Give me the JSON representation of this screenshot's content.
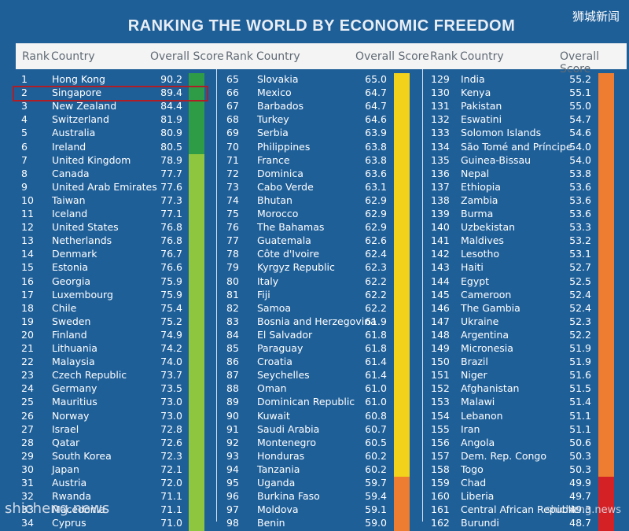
{
  "title": "RANKING THE WORLD BY ECONOMIC FREEDOM",
  "brand": "狮城新闻",
  "headers": {
    "rank": "Rank",
    "country": "Country",
    "score": "Overall Score"
  },
  "watermarks": {
    "left": "shicheng.news",
    "right": "shicheng.news"
  },
  "colors": {
    "background": "#1f5f98",
    "green": "#2e9b47",
    "light_green": "#8ec63f",
    "yellow": "#f2d21b",
    "orange": "#ee7d31",
    "red": "#d42126",
    "highlight": "#b11d25"
  },
  "columns": [
    {
      "rows": [
        [
          "1",
          "Hong Kong",
          "90.2"
        ],
        [
          "2",
          "Singapore",
          "89.4"
        ],
        [
          "3",
          "New Zealand",
          "84.4"
        ],
        [
          "4",
          "Switzerland",
          "81.9"
        ],
        [
          "5",
          "Australia",
          "80.9"
        ],
        [
          "6",
          "Ireland",
          "80.5"
        ],
        [
          "7",
          "United Kingdom",
          "78.9"
        ],
        [
          "8",
          "Canada",
          "77.7"
        ],
        [
          "9",
          "United Arab Emirates",
          "77.6"
        ],
        [
          "10",
          "Taiwan",
          "77.3"
        ],
        [
          "11",
          "Iceland",
          "77.1"
        ],
        [
          "12",
          "United States",
          "76.8"
        ],
        [
          "13",
          "Netherlands",
          "76.8"
        ],
        [
          "14",
          "Denmark",
          "76.7"
        ],
        [
          "15",
          "Estonia",
          "76.6"
        ],
        [
          "16",
          "Georgia",
          "75.9"
        ],
        [
          "17",
          "Luxembourg",
          "75.9"
        ],
        [
          "18",
          "Chile",
          "75.4"
        ],
        [
          "19",
          "Sweden",
          "75.2"
        ],
        [
          "20",
          "Finland",
          "74.9"
        ],
        [
          "21",
          "Lithuania",
          "74.2"
        ],
        [
          "22",
          "Malaysia",
          "74.0"
        ],
        [
          "23",
          "Czech Republic",
          "73.7"
        ],
        [
          "24",
          "Germany",
          "73.5"
        ],
        [
          "25",
          "Mauritius",
          "73.0"
        ],
        [
          "26",
          "Norway",
          "73.0"
        ],
        [
          "27",
          "Israel",
          "72.8"
        ],
        [
          "28",
          "Qatar",
          "72.6"
        ],
        [
          "29",
          "South Korea",
          "72.3"
        ],
        [
          "30",
          "Japan",
          "72.1"
        ],
        [
          "31",
          "Austria",
          "72.0"
        ],
        [
          "32",
          "Rwanda",
          "71.1"
        ],
        [
          "33",
          "Macedonia",
          "71.1"
        ],
        [
          "34",
          "Cyprus",
          "71.0"
        ]
      ]
    },
    {
      "rows": [
        [
          "65",
          "Slovakia",
          "65.0"
        ],
        [
          "66",
          "Mexico",
          "64.7"
        ],
        [
          "67",
          "Barbados",
          "64.7"
        ],
        [
          "68",
          "Turkey",
          "64.6"
        ],
        [
          "69",
          "Serbia",
          "63.9"
        ],
        [
          "70",
          "Philippines",
          "63.8"
        ],
        [
          "71",
          "France",
          "63.8"
        ],
        [
          "72",
          "Dominica",
          "63.6"
        ],
        [
          "73",
          "Cabo Verde",
          "63.1"
        ],
        [
          "74",
          "Bhutan",
          "62.9"
        ],
        [
          "75",
          "Morocco",
          "62.9"
        ],
        [
          "76",
          "The Bahamas",
          "62.9"
        ],
        [
          "77",
          "Guatemala",
          "62.6"
        ],
        [
          "78",
          "Côte d'Ivoire",
          "62.4"
        ],
        [
          "79",
          "Kyrgyz Republic",
          "62.3"
        ],
        [
          "80",
          "Italy",
          "62.2"
        ],
        [
          "81",
          "Fiji",
          "62.2"
        ],
        [
          "82",
          "Samoa",
          "62.2"
        ],
        [
          "83",
          "Bosnia and Herzegovina",
          "61.9"
        ],
        [
          "84",
          "El Salvador",
          "61.8"
        ],
        [
          "85",
          "Paraguay",
          "61.8"
        ],
        [
          "86",
          "Croatia",
          "61.4"
        ],
        [
          "87",
          "Seychelles",
          "61.4"
        ],
        [
          "88",
          "Oman",
          "61.0"
        ],
        [
          "89",
          "Dominican Republic",
          "61.0"
        ],
        [
          "90",
          "Kuwait",
          "60.8"
        ],
        [
          "91",
          "Saudi Arabia",
          "60.7"
        ],
        [
          "92",
          "Montenegro",
          "60.5"
        ],
        [
          "93",
          "Honduras",
          "60.2"
        ],
        [
          "94",
          "Tanzania",
          "60.2"
        ],
        [
          "95",
          "Uganda",
          "59.7"
        ],
        [
          "96",
          "Burkina Faso",
          "59.4"
        ],
        [
          "97",
          "Moldova",
          "59.1"
        ],
        [
          "98",
          "Benin",
          "59.0"
        ]
      ]
    },
    {
      "rows": [
        [
          "129",
          "India",
          "55.2"
        ],
        [
          "130",
          "Kenya",
          "55.1"
        ],
        [
          "131",
          "Pakistan",
          "55.0"
        ],
        [
          "132",
          "Eswatini",
          "54.7"
        ],
        [
          "133",
          "Solomon Islands",
          "54.6"
        ],
        [
          "134",
          "São Tomé and Príncipe",
          "54.0"
        ],
        [
          "135",
          "Guinea-Bissau",
          "54.0"
        ],
        [
          "136",
          "Nepal",
          "53.8"
        ],
        [
          "137",
          "Ethiopia",
          "53.6"
        ],
        [
          "138",
          "Zambia",
          "53.6"
        ],
        [
          "139",
          "Burma",
          "53.6"
        ],
        [
          "140",
          "Uzbekistan",
          "53.3"
        ],
        [
          "141",
          "Maldives",
          "53.2"
        ],
        [
          "142",
          "Lesotho",
          "53.1"
        ],
        [
          "143",
          "Haiti",
          "52.7"
        ],
        [
          "144",
          "Egypt",
          "52.5"
        ],
        [
          "145",
          "Cameroon",
          "52.4"
        ],
        [
          "146",
          "The Gambia",
          "52.4"
        ],
        [
          "147",
          "Ukraine",
          "52.3"
        ],
        [
          "148",
          "Argentina",
          "52.2"
        ],
        [
          "149",
          "Micronesia",
          "51.9"
        ],
        [
          "150",
          "Brazil",
          "51.9"
        ],
        [
          "151",
          "Niger",
          "51.6"
        ],
        [
          "152",
          "Afghanistan",
          "51.5"
        ],
        [
          "153",
          "Malawi",
          "51.4"
        ],
        [
          "154",
          "Lebanon",
          "51.1"
        ],
        [
          "155",
          "Iran",
          "51.1"
        ],
        [
          "156",
          "Angola",
          "50.6"
        ],
        [
          "157",
          "Dem. Rep. Congo",
          "50.3"
        ],
        [
          "158",
          "Togo",
          "50.3"
        ],
        [
          "159",
          "Chad",
          "49.9"
        ],
        [
          "160",
          "Liberia",
          "49.7"
        ],
        [
          "161",
          "Central African Republic",
          "49.3"
        ],
        [
          "162",
          "Burundi",
          "48.7"
        ]
      ]
    }
  ]
}
